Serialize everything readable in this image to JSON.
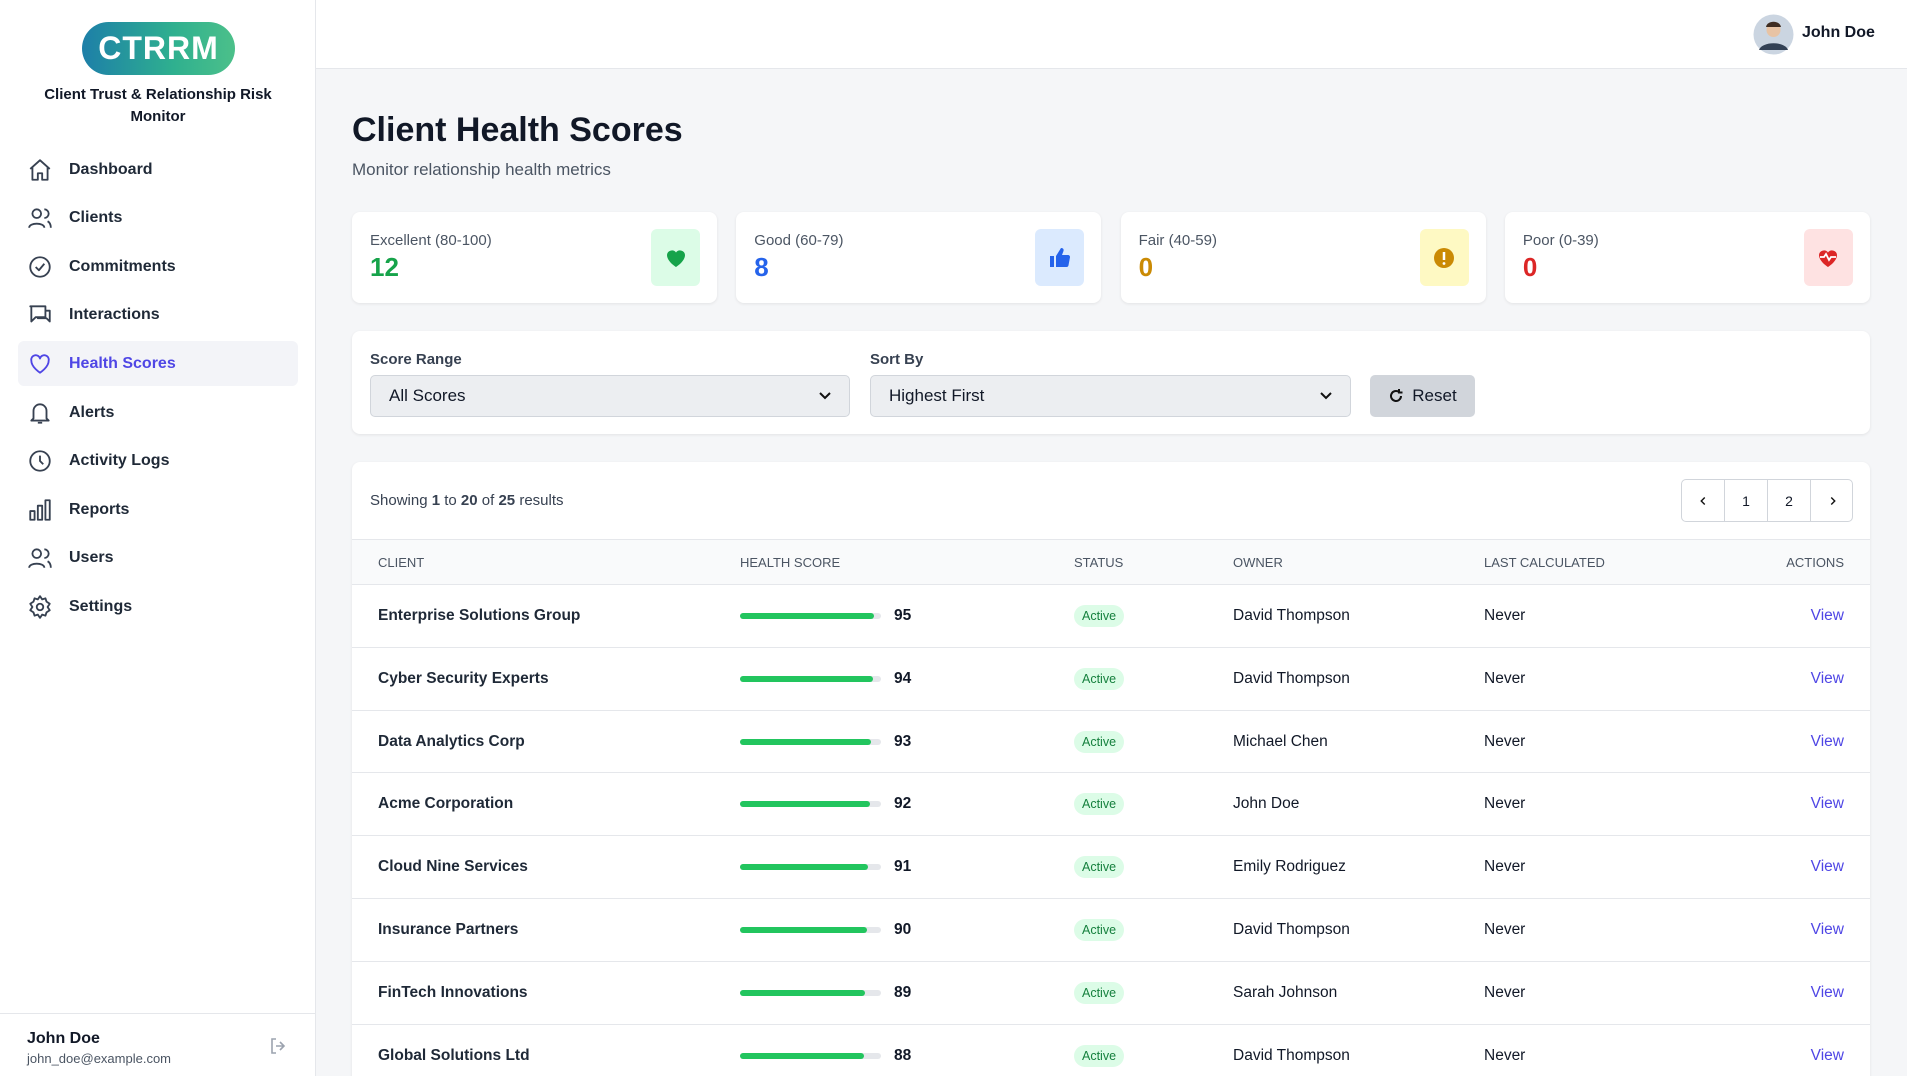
{
  "sidebar": {
    "logo": "CTRRM",
    "app_name": "Client Trust & Relationship Risk Monitor",
    "nav": [
      "Dashboard",
      "Clients",
      "Commitments",
      "Interactions",
      "Health Scores",
      "Alerts",
      "Activity Logs",
      "Reports",
      "Users",
      "Settings"
    ],
    "user": {
      "name": "John Doe",
      "email": "john_doe@example.com"
    }
  },
  "header": {
    "user_name": "John Doe"
  },
  "page": {
    "title": "Client Health Scores",
    "subtitle": "Monitor relationship health metrics"
  },
  "stats": [
    {
      "label": "Excellent (80-100)",
      "value": 12
    },
    {
      "label": "Good (60-79)",
      "value": 8
    },
    {
      "label": "Fair (40-59)",
      "value": 0
    },
    {
      "label": "Poor (0-39)",
      "value": 0
    }
  ],
  "filters": {
    "score_range": {
      "label": "Score Range",
      "value": "All Scores"
    },
    "sort_by": {
      "label": "Sort By",
      "value": "Highest First"
    },
    "reset": "Reset"
  },
  "results": {
    "showing": "Showing",
    "from": 1,
    "to_word": "to",
    "to": 20,
    "of_word": "of",
    "total": 25,
    "results_word": "results"
  },
  "pagination": [
    1,
    2
  ],
  "table": {
    "columns": [
      "CLIENT",
      "HEALTH SCORE",
      "STATUS",
      "OWNER",
      "LAST CALCULATED",
      "ACTIONS"
    ],
    "rows": [
      {
        "client": "Enterprise Solutions Group",
        "score": 95,
        "status": "Active",
        "owner": "David Thompson",
        "last": "Never",
        "action": "View"
      },
      {
        "client": "Cyber Security Experts",
        "score": 94,
        "status": "Active",
        "owner": "David Thompson",
        "last": "Never",
        "action": "View"
      },
      {
        "client": "Data Analytics Corp",
        "score": 93,
        "status": "Active",
        "owner": "Michael Chen",
        "last": "Never",
        "action": "View"
      },
      {
        "client": "Acme Corporation",
        "score": 92,
        "status": "Active",
        "owner": "John Doe",
        "last": "Never",
        "action": "View"
      },
      {
        "client": "Cloud Nine Services",
        "score": 91,
        "status": "Active",
        "owner": "Emily Rodriguez",
        "last": "Never",
        "action": "View"
      },
      {
        "client": "Insurance Partners",
        "score": 90,
        "status": "Active",
        "owner": "David Thompson",
        "last": "Never",
        "action": "View"
      },
      {
        "client": "FinTech Innovations",
        "score": 89,
        "status": "Active",
        "owner": "Sarah Johnson",
        "last": "Never",
        "action": "View"
      },
      {
        "client": "Global Solutions Ltd",
        "score": 88,
        "status": "Active",
        "owner": "David Thompson",
        "last": "Never",
        "action": "View"
      }
    ]
  }
}
